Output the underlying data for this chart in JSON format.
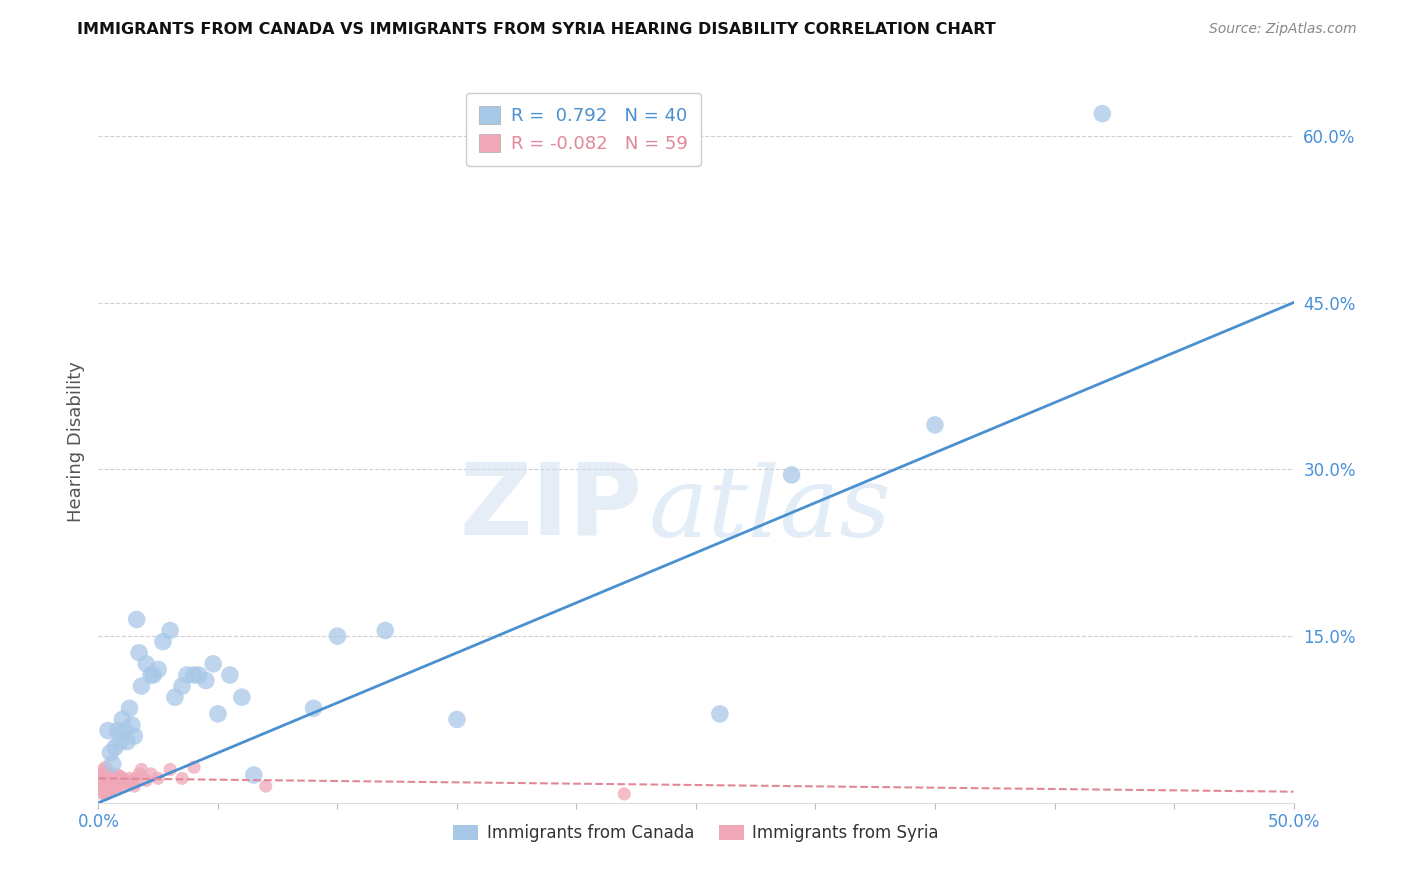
{
  "title": "IMMIGRANTS FROM CANADA VS IMMIGRANTS FROM SYRIA HEARING DISABILITY CORRELATION CHART",
  "source": "Source: ZipAtlas.com",
  "ylabel": "Hearing Disability",
  "xlim": [
    0.0,
    0.5
  ],
  "ylim": [
    0.0,
    0.65
  ],
  "xticks": [
    0.0,
    0.05,
    0.1,
    0.15,
    0.2,
    0.25,
    0.3,
    0.35,
    0.4,
    0.45,
    0.5
  ],
  "xticklabels": [
    "0.0%",
    "",
    "",
    "",
    "",
    "",
    "",
    "",
    "",
    "",
    "50.0%"
  ],
  "ytick_positions": [
    0.15,
    0.3,
    0.45,
    0.6
  ],
  "ytick_labels": [
    "15.0%",
    "30.0%",
    "45.0%",
    "60.0%"
  ],
  "canada_R": 0.792,
  "canada_N": 40,
  "syria_R": -0.082,
  "syria_N": 59,
  "canada_color": "#a8c8e8",
  "canada_line_color": "#4a90d0",
  "syria_color": "#f0a8b8",
  "syria_line_color": "#e08898",
  "canada_scatter_x": [
    0.004,
    0.005,
    0.006,
    0.007,
    0.008,
    0.009,
    0.01,
    0.011,
    0.012,
    0.013,
    0.014,
    0.015,
    0.016,
    0.017,
    0.018,
    0.02,
    0.022,
    0.023,
    0.025,
    0.027,
    0.03,
    0.032,
    0.035,
    0.037,
    0.04,
    0.042,
    0.045,
    0.048,
    0.05,
    0.055,
    0.06,
    0.065,
    0.09,
    0.1,
    0.12,
    0.15,
    0.26,
    0.29,
    0.35,
    0.42
  ],
  "canada_scatter_y": [
    0.065,
    0.045,
    0.035,
    0.05,
    0.065,
    0.055,
    0.075,
    0.065,
    0.055,
    0.085,
    0.07,
    0.06,
    0.165,
    0.135,
    0.105,
    0.125,
    0.115,
    0.115,
    0.12,
    0.145,
    0.155,
    0.095,
    0.105,
    0.115,
    0.115,
    0.115,
    0.11,
    0.125,
    0.08,
    0.115,
    0.095,
    0.025,
    0.085,
    0.15,
    0.155,
    0.075,
    0.08,
    0.295,
    0.34,
    0.62
  ],
  "syria_scatter_x": [
    0.001,
    0.001,
    0.001,
    0.001,
    0.001,
    0.002,
    0.002,
    0.002,
    0.002,
    0.002,
    0.002,
    0.003,
    0.003,
    0.003,
    0.003,
    0.003,
    0.003,
    0.003,
    0.003,
    0.004,
    0.004,
    0.004,
    0.004,
    0.004,
    0.005,
    0.005,
    0.005,
    0.005,
    0.005,
    0.006,
    0.006,
    0.006,
    0.006,
    0.007,
    0.007,
    0.007,
    0.008,
    0.008,
    0.008,
    0.009,
    0.009,
    0.01,
    0.01,
    0.011,
    0.012,
    0.013,
    0.014,
    0.015,
    0.016,
    0.017,
    0.018,
    0.02,
    0.022,
    0.025,
    0.03,
    0.035,
    0.04,
    0.07,
    0.22
  ],
  "syria_scatter_y": [
    0.01,
    0.012,
    0.015,
    0.02,
    0.025,
    0.008,
    0.012,
    0.015,
    0.02,
    0.025,
    0.03,
    0.008,
    0.01,
    0.013,
    0.016,
    0.02,
    0.024,
    0.028,
    0.032,
    0.01,
    0.013,
    0.016,
    0.02,
    0.024,
    0.01,
    0.013,
    0.016,
    0.02,
    0.025,
    0.015,
    0.018,
    0.022,
    0.026,
    0.012,
    0.016,
    0.022,
    0.015,
    0.02,
    0.025,
    0.018,
    0.024,
    0.016,
    0.022,
    0.02,
    0.018,
    0.022,
    0.02,
    0.015,
    0.022,
    0.026,
    0.03,
    0.02,
    0.026,
    0.022,
    0.03,
    0.022,
    0.032,
    0.015,
    0.008
  ],
  "canada_line_x0": 0.0,
  "canada_line_y0": 0.0,
  "canada_line_x1": 0.5,
  "canada_line_y1": 0.45,
  "syria_line_x0": 0.0,
  "syria_line_y0": 0.022,
  "syria_line_x1": 0.5,
  "syria_line_y1": 0.01,
  "watermark_zip": "ZIP",
  "watermark_atlas": "atlas",
  "background_color": "#ffffff",
  "grid_color": "#cccccc",
  "title_color": "#111111",
  "axis_label_color": "#555555",
  "tick_label_color": "#4a90d9",
  "legend_label_canada": "Immigrants from Canada",
  "legend_label_syria": "Immigrants from Syria"
}
